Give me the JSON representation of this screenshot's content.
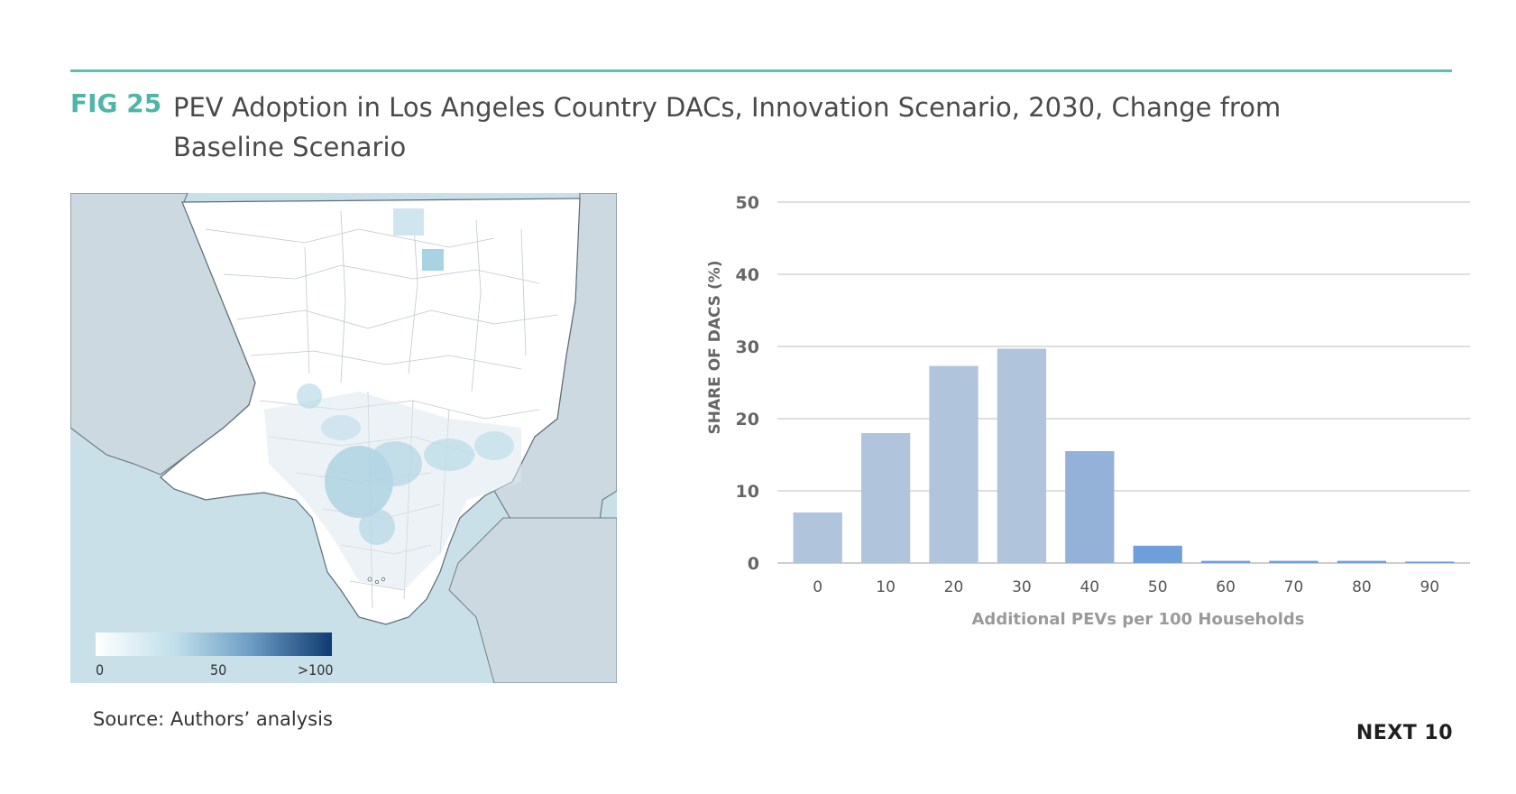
{
  "header": {
    "fig_label": "FIG 25",
    "title": "PEV Adoption in Los Angeles Country DACs, Innovation Scenario, 2030, Change from Baseline Scenario"
  },
  "map": {
    "legend": {
      "min_label": "0",
      "mid_label": "50",
      "max_label": ">100",
      "color_low": "#ffffff",
      "color_mid": "#a7cfdf",
      "color_high": "#0f3b73"
    },
    "ocean_color": "#c9e0e8",
    "land_other_color": "#cdd9e0",
    "county_color": "#ffffff"
  },
  "chart_data": {
    "type": "bar",
    "categories": [
      "0",
      "10",
      "20",
      "30",
      "40",
      "50",
      "60",
      "70",
      "80",
      "90"
    ],
    "values": [
      7,
      18,
      27.3,
      29.7,
      15.5,
      2.4,
      0.3,
      0.3,
      0.3,
      0.2
    ],
    "ylim": [
      0,
      50
    ],
    "yticks": [
      "0",
      "10",
      "20",
      "30",
      "40",
      "50"
    ],
    "ylabel": "SHARE OF DACS (%)",
    "xlabel": "Additional PEVs per 100 Households",
    "grid": true,
    "colors": {
      "bar": "#b0c4dc",
      "bar_dark": "#94b2d8",
      "bar_accent": "#6f9fd8",
      "grid": "#bdbdbd",
      "text": "#666666",
      "xlabel": "#9a9a9a"
    }
  },
  "footer": {
    "source": "Source: Authors’ analysis",
    "brand": "NEXT 10"
  }
}
